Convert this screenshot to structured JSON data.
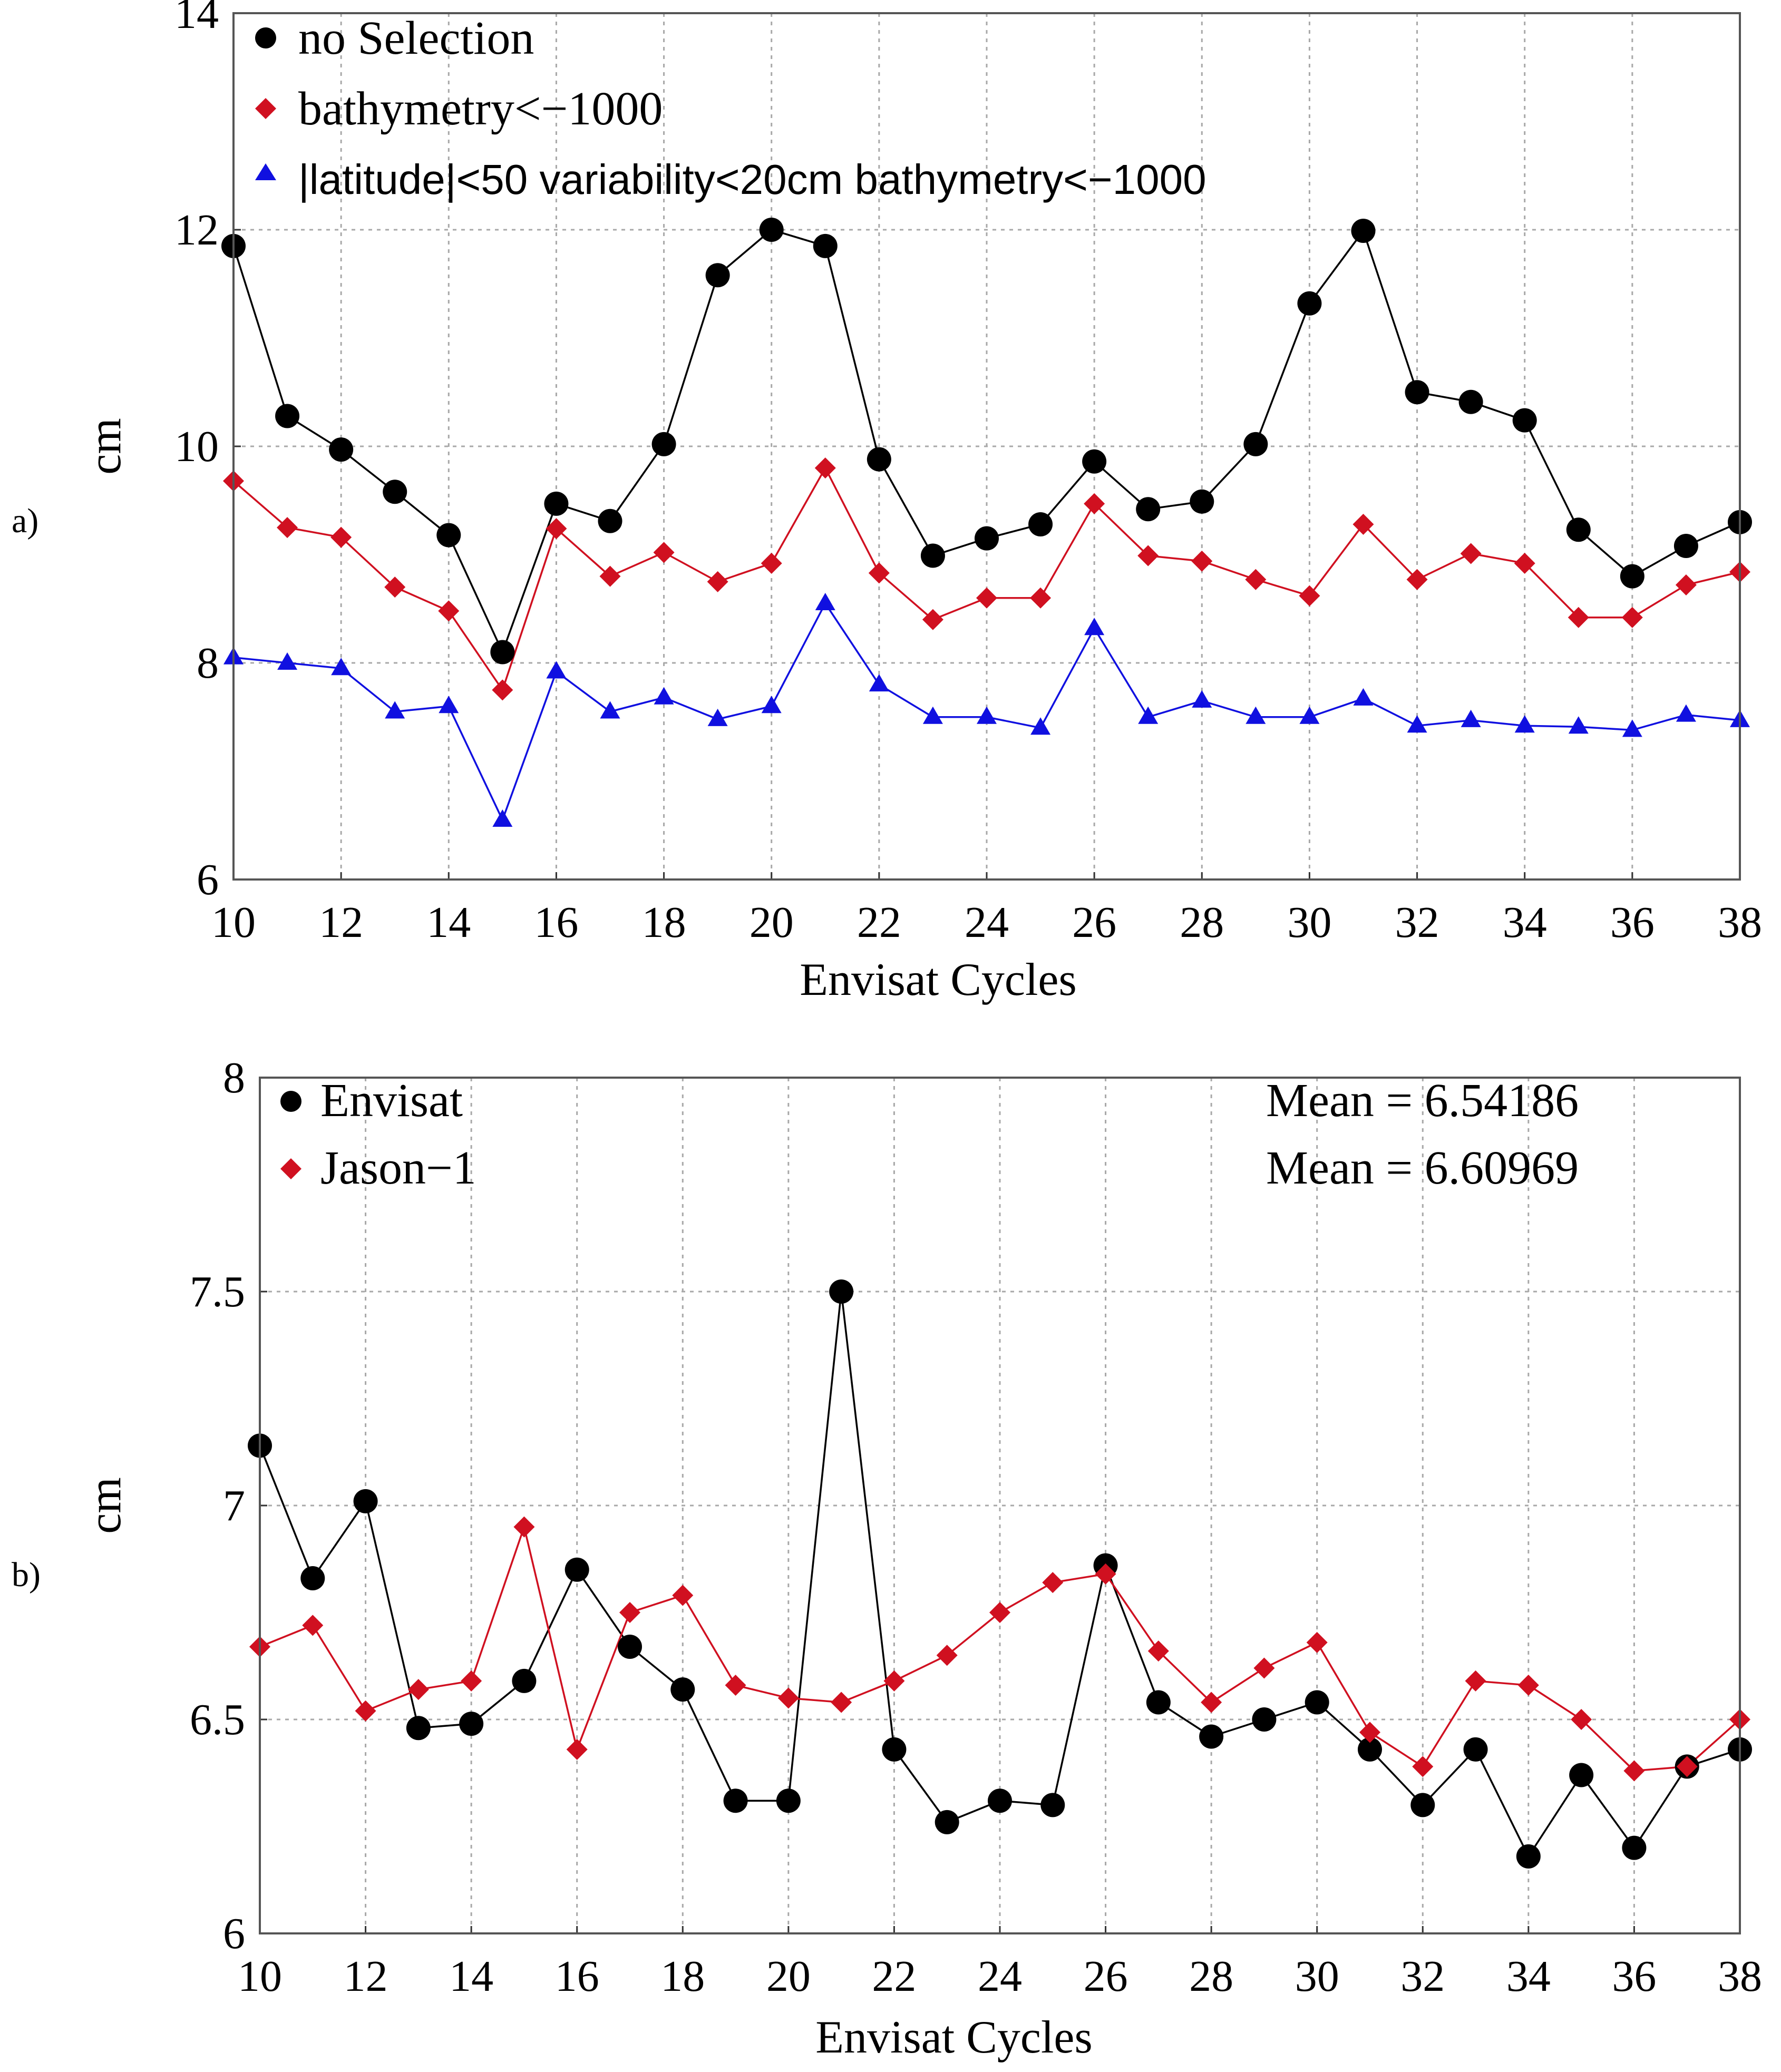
{
  "chart_data": [
    {
      "type": "line",
      "panel_label": "a)",
      "xlabel": "Envisat Cycles",
      "ylabel": "cm",
      "xlim": [
        10,
        38
      ],
      "ylim": [
        6,
        14
      ],
      "xticks": [
        10,
        12,
        14,
        16,
        18,
        20,
        22,
        24,
        26,
        28,
        30,
        32,
        34,
        36,
        38
      ],
      "yticks": [
        6,
        8,
        10,
        12,
        14
      ],
      "grid": true,
      "legend_position": "top-left",
      "x": [
        10,
        11,
        12,
        13,
        14,
        15,
        16,
        17,
        18,
        19,
        20,
        21,
        22,
        23,
        24,
        25,
        26,
        27,
        28,
        29,
        30,
        31,
        32,
        33,
        34,
        35,
        36,
        37,
        38
      ],
      "series": [
        {
          "name": "no Selection",
          "color": "#000000",
          "marker": "circle",
          "values": [
            11.85,
            10.28,
            9.97,
            9.58,
            9.18,
            8.1,
            9.47,
            9.31,
            10.02,
            11.58,
            12.0,
            11.85,
            9.88,
            8.99,
            9.15,
            9.28,
            9.86,
            9.42,
            9.49,
            10.02,
            11.32,
            11.99,
            10.5,
            10.41,
            10.24,
            9.23,
            8.8,
            9.08,
            9.3
          ]
        },
        {
          "name": "bathymetry<−1000",
          "color": "#d01020",
          "marker": "diamond",
          "values": [
            9.68,
            9.25,
            9.16,
            8.7,
            8.48,
            7.75,
            9.24,
            8.8,
            9.02,
            8.75,
            8.92,
            9.8,
            8.83,
            8.4,
            8.6,
            8.6,
            9.47,
            8.99,
            8.94,
            8.77,
            8.62,
            9.28,
            8.77,
            9.01,
            8.92,
            8.42,
            8.42,
            8.72,
            8.84
          ]
        },
        {
          "name": "|latitude|<50 variability<20cm bathymetry<−1000",
          "color": "#1010e0",
          "marker": "triangle",
          "values": [
            8.05,
            8.0,
            7.95,
            7.55,
            7.6,
            6.55,
            7.92,
            7.55,
            7.68,
            7.48,
            7.6,
            8.55,
            7.8,
            7.5,
            7.5,
            7.4,
            8.32,
            7.5,
            7.65,
            7.5,
            7.5,
            7.67,
            7.42,
            7.47,
            7.42,
            7.41,
            7.38,
            7.52,
            7.47
          ]
        }
      ]
    },
    {
      "type": "line",
      "panel_label": "b)",
      "xlabel": "Envisat Cycles",
      "ylabel": "cm",
      "xlim": [
        10,
        38
      ],
      "ylim": [
        6,
        8
      ],
      "xticks": [
        10,
        12,
        14,
        16,
        18,
        20,
        22,
        24,
        26,
        28,
        30,
        32,
        34,
        36,
        38
      ],
      "yticks": [
        6,
        6.5,
        7,
        7.5,
        8
      ],
      "grid": true,
      "legend_position": "top-left",
      "annotations": [
        "Mean = 6.54186",
        "Mean = 6.60969"
      ],
      "x": [
        10,
        11,
        12,
        13,
        14,
        15,
        16,
        17,
        18,
        19,
        20,
        21,
        22,
        23,
        24,
        25,
        26,
        27,
        28,
        29,
        30,
        31,
        32,
        33,
        34,
        35,
        36,
        37,
        38
      ],
      "series": [
        {
          "name": "Envisat",
          "color": "#000000",
          "marker": "circle",
          "values": [
            7.14,
            6.83,
            7.01,
            6.48,
            6.49,
            6.59,
            6.85,
            6.67,
            6.57,
            6.31,
            6.31,
            7.5,
            6.43,
            6.26,
            6.31,
            6.3,
            6.86,
            6.54,
            6.46,
            6.5,
            6.54,
            6.43,
            6.3,
            6.43,
            6.18,
            6.37,
            6.2,
            6.39,
            6.43
          ]
        },
        {
          "name": "Jason−1",
          "color": "#d01020",
          "marker": "diamond",
          "values": [
            6.67,
            6.72,
            6.52,
            6.57,
            6.59,
            6.95,
            6.43,
            6.75,
            6.79,
            6.58,
            6.55,
            6.54,
            6.59,
            6.65,
            6.75,
            6.82,
            6.84,
            6.66,
            6.54,
            6.62,
            6.68,
            6.47,
            6.39,
            6.59,
            6.58,
            6.5,
            6.38,
            6.39,
            6.5
          ]
        }
      ]
    }
  ]
}
